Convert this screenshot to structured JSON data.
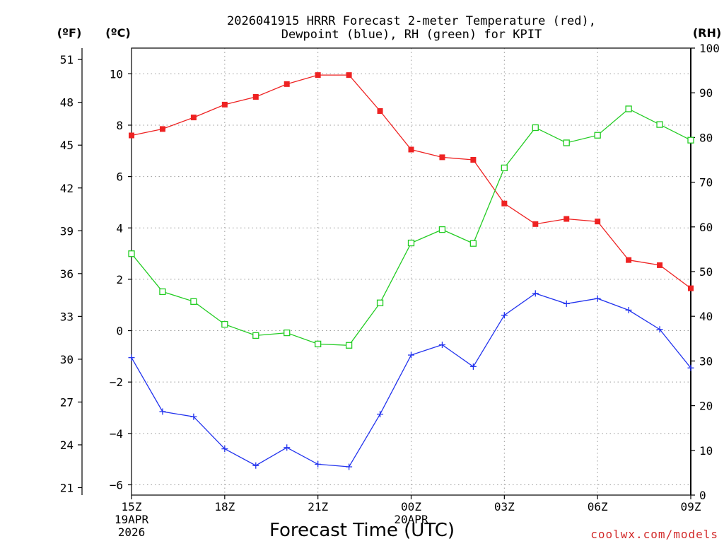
{
  "chart_data": {
    "type": "line",
    "title_line1": "2026041915 HRRR Forecast 2-meter Temperature (red),",
    "title_line2": "Dewpoint (blue), RH (green) for KPIT",
    "xlabel": "Forecast Time (UTC)",
    "credit": "coolwx.com/models",
    "units": {
      "fahrenheit": "(ºF)",
      "celsius": "(ºC)",
      "rh": "(RH)"
    },
    "x_hours": [
      0,
      1,
      2,
      3,
      4,
      5,
      6,
      7,
      8,
      9,
      10,
      11,
      12,
      13,
      14,
      15,
      16,
      17,
      18
    ],
    "x_ticks": [
      {
        "hour": 0,
        "label": "15Z",
        "line2": "19APR",
        "line3": "2026"
      },
      {
        "hour": 3,
        "label": "18Z",
        "line2": "",
        "line3": ""
      },
      {
        "hour": 6,
        "label": "21Z",
        "line2": "",
        "line3": ""
      },
      {
        "hour": 9,
        "label": "00Z",
        "line2": "20APR",
        "line3": ""
      },
      {
        "hour": 12,
        "label": "03Z",
        "line2": "",
        "line3": ""
      },
      {
        "hour": 15,
        "label": "06Z",
        "line2": "",
        "line3": ""
      },
      {
        "hour": 18,
        "label": "09Z",
        "line2": "",
        "line3": ""
      }
    ],
    "celsius_axis": {
      "range": [
        -6.4,
        11
      ],
      "ticks": [
        -6,
        -4,
        -2,
        0,
        2,
        4,
        6,
        8,
        10
      ]
    },
    "fahrenheit_axis": {
      "ticks": [
        21,
        24,
        27,
        30,
        33,
        36,
        39,
        42,
        45,
        48,
        51
      ]
    },
    "rh_axis": {
      "range": [
        0,
        100
      ],
      "ticks": [
        0,
        10,
        20,
        30,
        40,
        50,
        60,
        70,
        80,
        90,
        100
      ]
    },
    "series": [
      {
        "name": "Temperature",
        "unit": "C",
        "color": "#ee2222",
        "marker": "filled-square",
        "values": [
          7.6,
          7.85,
          8.3,
          8.8,
          9.1,
          9.6,
          9.95,
          9.95,
          8.55,
          7.05,
          6.75,
          6.65,
          4.95,
          4.15,
          4.35,
          4.25,
          2.75,
          2.55,
          1.65
        ]
      },
      {
        "name": "Dewpoint",
        "unit": "C",
        "color": "#2233ee",
        "marker": "plus",
        "values": [
          -1.05,
          -3.15,
          -3.35,
          -4.6,
          -5.25,
          -4.55,
          -5.2,
          -5.3,
          -3.25,
          -0.95,
          -0.55,
          -1.4,
          0.6,
          1.45,
          1.05,
          1.25,
          0.8,
          0.05,
          -1.45
        ]
      },
      {
        "name": "RH",
        "unit": "%",
        "color": "#22cc22",
        "marker": "open-square",
        "values": [
          54,
          45.5,
          43.3,
          38.2,
          35.7,
          36.3,
          33.8,
          33.5,
          43,
          56.4,
          59.4,
          56.3,
          73.2,
          82.2,
          78.8,
          80.5,
          86.4,
          82.9,
          79.4
        ]
      }
    ]
  }
}
